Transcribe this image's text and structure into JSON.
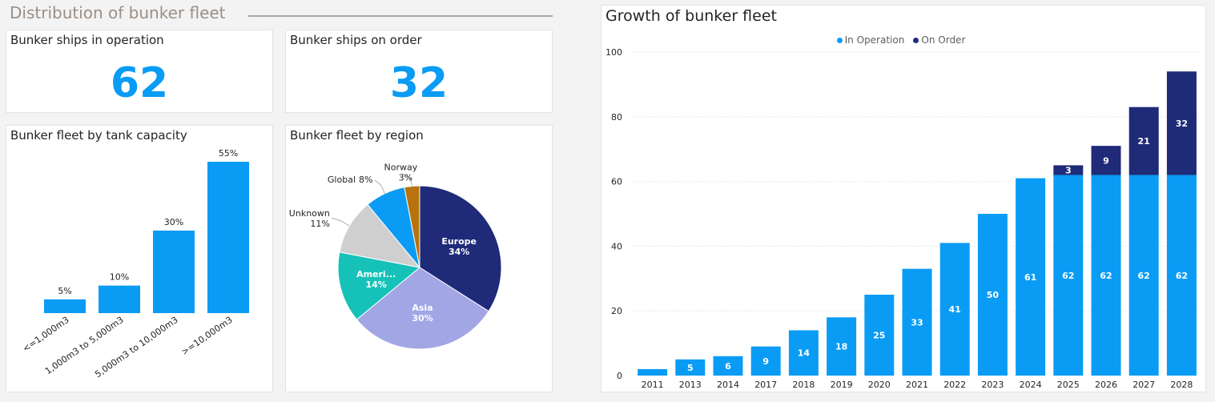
{
  "section_title": "Distribution of bunker fleet",
  "kpis": {
    "operation": {
      "title": "Bunker ships in operation",
      "value": "62"
    },
    "order": {
      "title": "Bunker ships on order",
      "value": "32"
    }
  },
  "colors": {
    "accent": "#0a9cf5",
    "navy": "#1f2b78",
    "teal": "#16c2b8",
    "lavender": "#a2a6e5",
    "gray": "#cfcfcf",
    "gold": "#b8720e"
  },
  "tank_chart": {
    "title": "Bunker fleet by tank capacity",
    "chart_data": {
      "type": "bar",
      "categories": [
        "<=1,000m3",
        "1,000m3 to 5,000m3",
        "5,000m3 to 10,000m3",
        ">=10,000m3"
      ],
      "values": [
        5,
        10,
        30,
        55
      ],
      "labels": [
        "5%",
        "10%",
        "30%",
        "55%"
      ],
      "ylim": [
        0,
        55
      ]
    }
  },
  "region_chart": {
    "title": "Bunker fleet by region",
    "chart_data": {
      "type": "pie",
      "slices": [
        {
          "name": "Europe",
          "value": 34,
          "pct": "34%",
          "color": "#1f2b78"
        },
        {
          "name": "Asia",
          "value": 30,
          "pct": "30%",
          "color": "#a2a6e5"
        },
        {
          "name": "Ameri...",
          "value": 14,
          "pct": "14%",
          "color": "#16c2b8"
        },
        {
          "name": "Unknown",
          "value": 11,
          "pct": "11%",
          "color": "#cfcfcf"
        },
        {
          "name": "Global",
          "value": 8,
          "pct": "8%",
          "color": "#0a9cf5"
        },
        {
          "name": "Norway",
          "value": 3,
          "pct": "3%",
          "color": "#b8720e"
        }
      ]
    }
  },
  "growth_chart": {
    "title": "Growth of bunker fleet",
    "chart_data": {
      "type": "bar",
      "stacked": true,
      "categories": [
        "2011",
        "2013",
        "2014",
        "2017",
        "2018",
        "2019",
        "2020",
        "2021",
        "2022",
        "2023",
        "2024",
        "2025",
        "2026",
        "2027",
        "2028"
      ],
      "series": [
        {
          "name": "In Operation",
          "color": "#0a9cf5",
          "values": [
            2,
            5,
            6,
            9,
            14,
            18,
            25,
            33,
            41,
            50,
            61,
            62,
            62,
            62,
            62
          ]
        },
        {
          "name": "On Order",
          "color": "#1f2b78",
          "values": [
            0,
            0,
            0,
            0,
            0,
            0,
            0,
            0,
            0,
            0,
            0,
            3,
            9,
            21,
            32
          ]
        }
      ],
      "yticks": [
        0,
        20,
        40,
        60,
        80,
        100
      ],
      "ylim": [
        0,
        100
      ],
      "legend": "top-center",
      "grid": true
    }
  }
}
